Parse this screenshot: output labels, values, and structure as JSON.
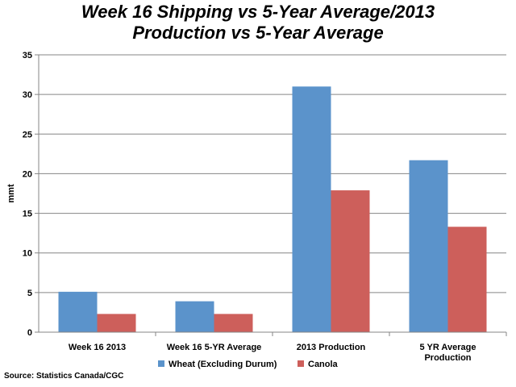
{
  "chart_data": {
    "type": "bar",
    "title_line1": "Week 16 Shipping vs 5-Year Average/2013",
    "title_line2": "Production vs 5-Year Average",
    "ylabel": "mmt",
    "xlabel": "",
    "ylim": [
      0,
      35
    ],
    "yticks": [
      0,
      5,
      10,
      15,
      20,
      25,
      30,
      35
    ],
    "grid": true,
    "legend_position": "bottom",
    "categories": [
      [
        "Week 16 2013"
      ],
      [
        "Week 16 5-YR Average"
      ],
      [
        "2013 Production"
      ],
      [
        "5 YR Average",
        "Production"
      ]
    ],
    "series": [
      {
        "name": "Wheat (Excluding Durum)",
        "color": "#5b93cb",
        "values": [
          5.1,
          3.9,
          31.0,
          21.7
        ]
      },
      {
        "name": "Canola",
        "color": "#cd5f5b",
        "values": [
          2.3,
          2.3,
          17.9,
          13.3
        ]
      }
    ],
    "source": "Source: Statistics Canada/CGC"
  }
}
